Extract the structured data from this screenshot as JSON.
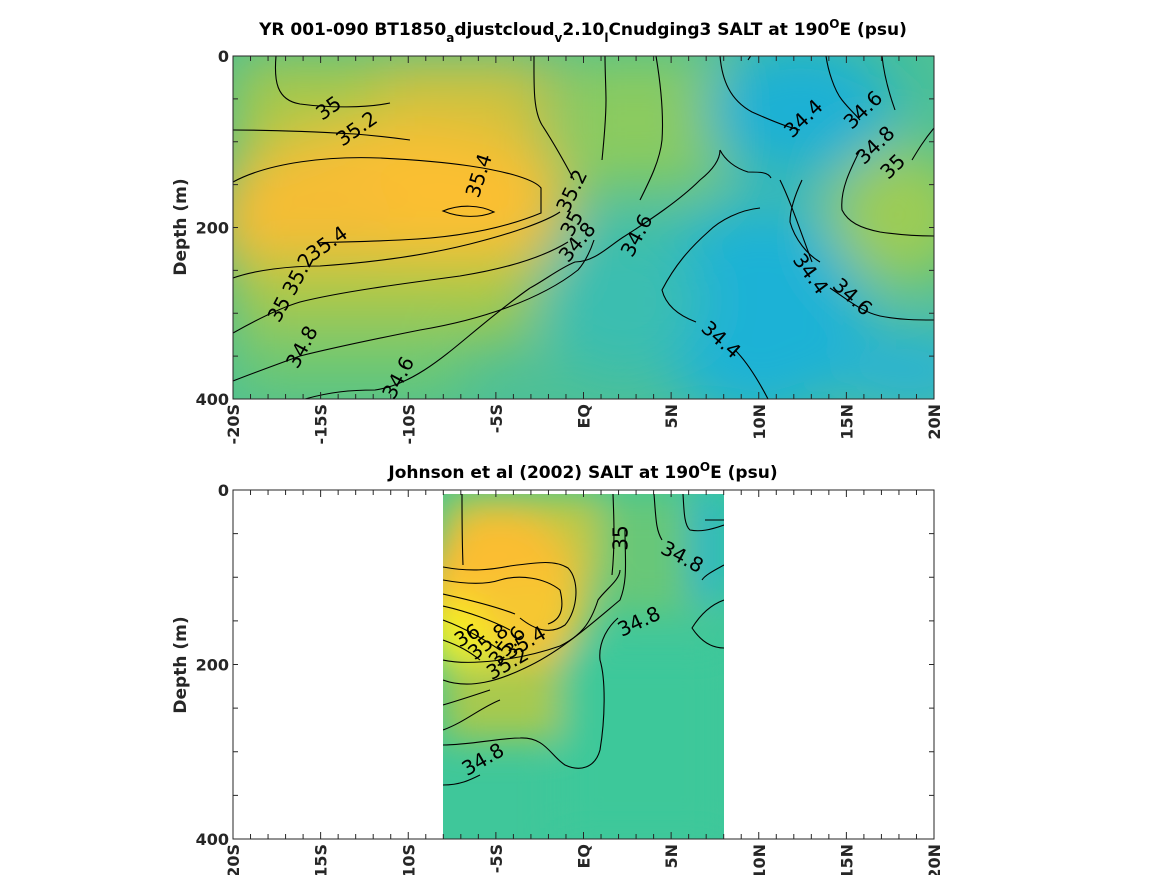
{
  "chart_data": [
    {
      "type": "heatmap",
      "title_parts": [
        "YR 001-090 BT1850",
        "a",
        "djustcloud",
        "v",
        "2.10",
        "l",
        "Cnudging3 SALT at 190",
        "O",
        "E (psu)"
      ],
      "ylabel": "Depth (m)",
      "x_ticks": [
        "-20S",
        "-15S",
        "-10S",
        "-5S",
        "EQ",
        "5N",
        "10N",
        "15N",
        "20N"
      ],
      "y_ticks": [
        "0",
        "200",
        "400"
      ],
      "xlim": [
        -20,
        20
      ],
      "ylim": [
        0,
        400
      ],
      "colorscale": {
        "low": "#1cb0d8",
        "mid": "#7ccb5e",
        "high": "#fbbf33",
        "max": "#f0f020"
      },
      "contour_labels": [
        {
          "text": "35",
          "lat": -14.5,
          "depth": 62
        },
        {
          "text": "35.2",
          "lat": -12.9,
          "depth": 86
        },
        {
          "text": "35.4",
          "lat": -5.9,
          "depth": 140
        },
        {
          "text": "35.4",
          "lat": -14.6,
          "depth": 220
        },
        {
          "text": "35.2",
          "lat": -16.2,
          "depth": 255
        },
        {
          "text": "35",
          "lat": -17.3,
          "depth": 296
        },
        {
          "text": "34.8",
          "lat": -16.0,
          "depth": 340
        },
        {
          "text": "34.6",
          "lat": -10.5,
          "depth": 376
        },
        {
          "text": "35.2",
          "lat": -0.6,
          "depth": 158
        },
        {
          "text": "35",
          "lat": -0.6,
          "depth": 196
        },
        {
          "text": "34.8",
          "lat": -0.3,
          "depth": 218
        },
        {
          "text": "34.6",
          "lat": 3.1,
          "depth": 210
        },
        {
          "text": "34.4",
          "lat": 12.6,
          "depth": 74
        },
        {
          "text": "34.6",
          "lat": 16.0,
          "depth": 64
        },
        {
          "text": "34.8",
          "lat": 16.7,
          "depth": 105
        },
        {
          "text": "35",
          "lat": 17.7,
          "depth": 130
        },
        {
          "text": "34.4",
          "lat": 12.9,
          "depth": 255
        },
        {
          "text": "34.6",
          "lat": 15.3,
          "depth": 282
        },
        {
          "text": "34.4",
          "lat": 7.8,
          "depth": 332
        }
      ]
    },
    {
      "type": "heatmap",
      "title_parts": [
        "Johnson et al (2002) SALT at 190",
        "O",
        "E (psu)"
      ],
      "ylabel": "Depth (m)",
      "x_ticks": [
        "-20S",
        "-15S",
        "-10S",
        "-5S",
        "EQ",
        "5N",
        "10N",
        "15N",
        "20N"
      ],
      "y_ticks": [
        "0",
        "200",
        "400"
      ],
      "xlim": [
        -20,
        20
      ],
      "ylim": [
        0,
        400
      ],
      "data_xrange": [
        -8,
        8
      ],
      "contour_labels": [
        {
          "text": "35",
          "lat": 2.2,
          "depth": 55
        },
        {
          "text": "34.8",
          "lat": 5.6,
          "depth": 78
        },
        {
          "text": "34.8",
          "lat": 3.2,
          "depth": 152
        },
        {
          "text": "36",
          "lat": -6.6,
          "depth": 168
        },
        {
          "text": "35.8",
          "lat": -5.4,
          "depth": 175
        },
        {
          "text": "35.6",
          "lat": -4.3,
          "depth": 180
        },
        {
          "text": "35.4",
          "lat": -3.3,
          "depth": 176
        },
        {
          "text": "35.2",
          "lat": -4.3,
          "depth": 200
        },
        {
          "text": "34.8",
          "lat": -5.7,
          "depth": 310
        }
      ]
    }
  ]
}
